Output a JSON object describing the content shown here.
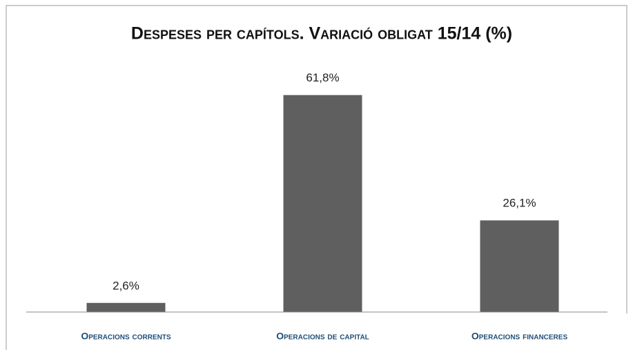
{
  "chart_data": {
    "type": "bar",
    "title": "Despeses per capítols. Variació obligat 15/14 (%)",
    "categories": [
      "Operacions corrents",
      "Operacions de capital",
      "Operacions financeres"
    ],
    "values": [
      2.6,
      61.8,
      26.1
    ],
    "value_labels": [
      "2,6%",
      "61,8%",
      "26,1%"
    ],
    "color": "#5f5f5f",
    "ylim": [
      0,
      70
    ],
    "grid": false
  }
}
